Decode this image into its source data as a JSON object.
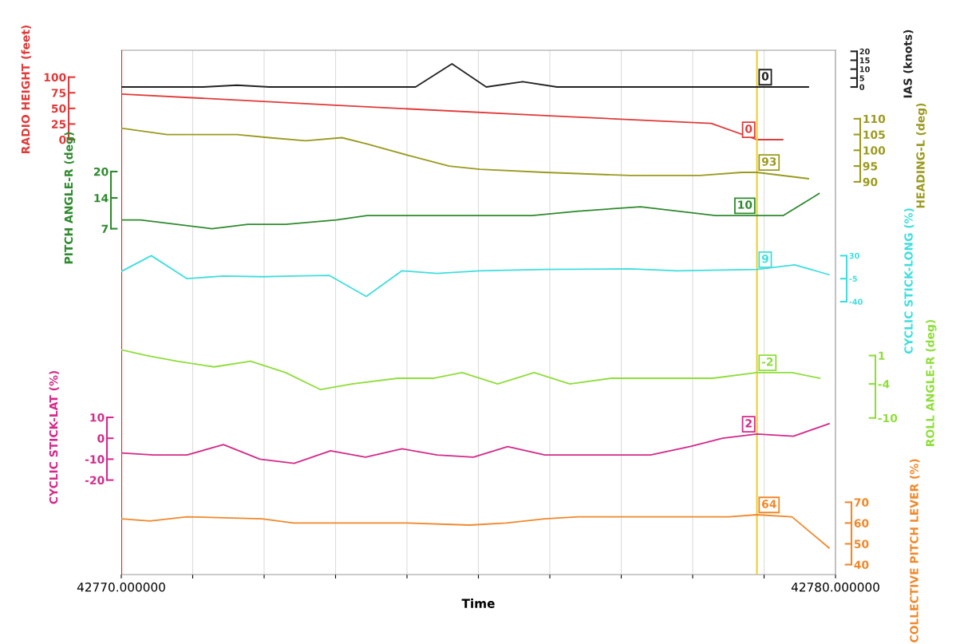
{
  "chart_data": [
    {
      "type": "line",
      "xlabel": "Time",
      "xlim": [
        42770,
        42780
      ],
      "xticks": [
        {
          "value": 42770,
          "label": "42770.000000"
        },
        {
          "value": 42771,
          "label": null
        },
        {
          "value": 42772,
          "label": null
        },
        {
          "value": 42773,
          "label": null
        },
        {
          "value": 42774,
          "label": null
        },
        {
          "value": 42775,
          "label": null
        },
        {
          "value": 42776,
          "label": null
        },
        {
          "value": 42777,
          "label": null
        },
        {
          "value": 42778,
          "label": null
        },
        {
          "value": 42779,
          "label": null
        },
        {
          "value": 42780,
          "label": "42780.000000"
        }
      ],
      "grid": "x",
      "ref_lines": [
        {
          "axis": "x",
          "value": 42770,
          "color": "#e02020"
        },
        {
          "axis": "x",
          "value": 42778.9,
          "color": "#e8d030"
        }
      ],
      "ylabel": "RADIO HEIGHT (feet)",
      "ylim": [
        -696,
        143
      ],
      "yticks": [
        0,
        25,
        50,
        75,
        100
      ],
      "series": [
        {
          "color": "#e03a3a",
          "x": [
            42770,
            42773,
            42776,
            42778.26,
            42778.9,
            42779.26
          ],
          "values": [
            73,
            55,
            38,
            26,
            0,
            0
          ],
          "value_labels": [
            null,
            null,
            null,
            null,
            "0",
            null
          ]
        }
      ]
    },
    {
      "type": "line",
      "xlim": [
        42770,
        42780
      ],
      "tick_labels": "y",
      "ylabel": "IAS (knots)",
      "ylim": [
        -273.6,
        20.6
      ],
      "yticks": [
        0,
        5,
        10,
        15,
        20
      ],
      "series": [
        {
          "color": "#222222",
          "x": [
            42770,
            42771.15,
            42771.62,
            42772.07,
            42774.12,
            42774.63,
            42775.11,
            42775.62,
            42776.1,
            42778.9,
            42779.62
          ],
          "values": [
            0,
            0,
            1,
            0,
            0,
            13,
            0,
            3,
            0,
            0,
            0
          ],
          "value_labels": [
            null,
            null,
            null,
            null,
            null,
            null,
            null,
            null,
            null,
            "0",
            null
          ]
        }
      ]
    },
    {
      "type": "line",
      "xlim": [
        42770,
        42780
      ],
      "tick_labels": "y",
      "ylabel": "HEADING-L (deg)",
      "ylim": [
        -34.5,
        131.7
      ],
      "yticks": [
        90,
        95,
        100,
        105,
        110
      ],
      "series": [
        {
          "color": "#9a9a20",
          "x": [
            42770,
            42770.64,
            42771.62,
            42772.07,
            42772.58,
            42773.09,
            42773.44,
            42774.08,
            42774.59,
            42775.02,
            42775.93,
            42777.13,
            42778.1,
            42778.69,
            42778.9,
            42779.62
          ],
          "values": [
            107,
            105,
            105,
            104,
            103,
            104,
            102,
            98,
            95,
            94,
            93,
            92,
            92,
            93,
            93,
            91
          ],
          "value_labels": [
            null,
            null,
            null,
            null,
            null,
            null,
            null,
            null,
            null,
            null,
            null,
            null,
            null,
            null,
            "93",
            null
          ]
        }
      ]
    },
    {
      "type": "line",
      "xlim": [
        42770,
        42780
      ],
      "tick_labels": "y",
      "ylabel": "PITCH ANGLE-R (deg)",
      "ylim": [
        -71.7,
        47.6
      ],
      "yticks": [
        7,
        14,
        20
      ],
      "series": [
        {
          "color": "#2e8a2e",
          "x": [
            42770,
            42770.27,
            42771.27,
            42771.77,
            42772.3,
            42773.01,
            42773.44,
            42773.82,
            42775.02,
            42775.75,
            42776.4,
            42777.27,
            42778.32,
            42778.9,
            42779.27,
            42779.77
          ],
          "values": [
            9,
            9,
            7,
            8,
            8,
            9,
            10,
            10,
            10,
            10,
            11,
            12,
            10,
            10,
            10,
            15
          ],
          "value_labels": [
            null,
            null,
            null,
            null,
            null,
            null,
            null,
            null,
            null,
            null,
            null,
            null,
            null,
            "10",
            null,
            null
          ]
        }
      ]
    },
    {
      "type": "line",
      "xlim": [
        42770,
        42780
      ],
      "tick_labels": "y",
      "ylabel": "CYCLIC STICK-LONG (%)",
      "ylim": [
        -455.5,
        342.7
      ],
      "yticks": [
        -40,
        -5,
        30
      ],
      "series": [
        {
          "color": "#40dede",
          "x": [
            42770,
            42770.42,
            42770.92,
            42771.43,
            42771.98,
            42772.41,
            42772.91,
            42773.43,
            42773.93,
            42774.42,
            42775.02,
            42775.93,
            42777.13,
            42777.78,
            42778.9,
            42779.43,
            42779.91
          ],
          "values": [
            6,
            30,
            -5,
            -1,
            -2,
            -1,
            0,
            -32,
            7,
            3,
            7,
            9,
            10,
            7,
            9,
            16,
            1
          ],
          "value_labels": [
            null,
            null,
            null,
            null,
            null,
            null,
            null,
            null,
            null,
            null,
            null,
            null,
            null,
            null,
            "9",
            null,
            null
          ]
        }
      ]
    },
    {
      "type": "line",
      "xlim": [
        42770,
        42780
      ],
      "tick_labels": "y",
      "ylabel": "ROLL ANGLE-R (deg)",
      "ylim": [
        -37.6,
        54.8
      ],
      "yticks": [
        -10,
        -4,
        1
      ],
      "series": [
        {
          "color": "#8ede3a",
          "x": [
            42770,
            42770.36,
            42770.78,
            42771.3,
            42771.81,
            42772.3,
            42772.79,
            42773.23,
            42773.87,
            42774.38,
            42774.77,
            42775.27,
            42775.78,
            42776.28,
            42776.86,
            42777.5,
            42778.28,
            42778.9,
            42779.39,
            42779.78
          ],
          "values": [
            2,
            1,
            0,
            -1,
            0,
            -2,
            -5,
            -4,
            -3,
            -3,
            -2,
            -4,
            -2,
            -4,
            -3,
            -3,
            -3,
            -2,
            -2,
            -3
          ],
          "value_labels": [
            null,
            null,
            null,
            null,
            null,
            null,
            null,
            null,
            null,
            null,
            null,
            null,
            null,
            null,
            null,
            null,
            null,
            "-2",
            null,
            null
          ]
        }
      ]
    },
    {
      "type": "line",
      "xlim": [
        42770,
        42780
      ],
      "tick_labels": "y",
      "ylabel": "CYCLIC STICK-LAT (%)",
      "ylim": [
        -65.2,
        185.6
      ],
      "yticks": [
        -20,
        -10,
        0,
        10
      ],
      "series": [
        {
          "color": "#d42a88",
          "x": [
            42770,
            42770.45,
            42770.92,
            42771.43,
            42771.94,
            42772.42,
            42772.93,
            42773.42,
            42773.93,
            42774.42,
            42774.93,
            42775.41,
            42775.93,
            42776.95,
            42777.41,
            42777.96,
            42778.42,
            42778.9,
            42779.41,
            42779.91
          ],
          "values": [
            -7,
            -8,
            -8,
            -3,
            -10,
            -12,
            -6,
            -9,
            -5,
            -8,
            -9,
            -4,
            -8,
            -8,
            -8,
            -4,
            0,
            2,
            1,
            7
          ],
          "value_labels": [
            null,
            null,
            null,
            null,
            null,
            null,
            null,
            null,
            null,
            null,
            null,
            null,
            null,
            null,
            null,
            null,
            null,
            "2",
            null,
            null
          ]
        }
      ]
    },
    {
      "type": "line",
      "xlim": [
        42770,
        42780
      ],
      "tick_labels": "y",
      "ylabel": "COLLECTIVE PITCH LEVER (%)",
      "ylim": [
        35.2,
        287.5
      ],
      "yticks": [
        40,
        50,
        60,
        70
      ],
      "series": [
        {
          "color": "#f0882a",
          "x": [
            42770,
            42770.4,
            42770.92,
            42771.97,
            42772.41,
            42772.93,
            42773.44,
            42774.0,
            42774.88,
            42775.39,
            42775.93,
            42776.4,
            42778.51,
            42778.9,
            42779.39,
            42779.91
          ],
          "values": [
            62,
            61,
            63,
            62,
            60,
            60,
            60,
            60,
            59,
            60,
            62,
            63,
            63,
            64,
            63,
            48
          ],
          "value_labels": [
            null,
            null,
            null,
            null,
            null,
            null,
            null,
            null,
            null,
            null,
            null,
            null,
            null,
            "64",
            null,
            null
          ]
        }
      ]
    }
  ]
}
